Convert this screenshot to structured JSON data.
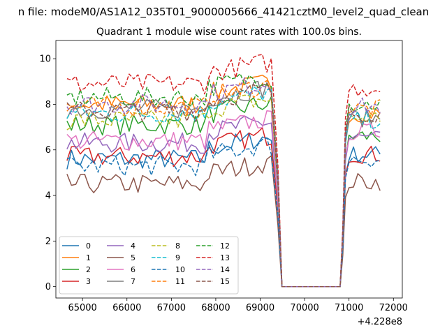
{
  "figure": {
    "suptitle": "n file: modeM0/AS1A12_035T01_9000005666_41421cztM0_level2_quad_clean"
  },
  "chart_data": {
    "type": "line",
    "title": "Quadrant 1 module wise count rates with 100.0s bins.",
    "xlabel": "",
    "ylabel": "",
    "x_offset_label": "+4.228e8",
    "x_offset": 422800000,
    "xlim": [
      64400,
      72200
    ],
    "ylim": [
      -0.5,
      10.8
    ],
    "xticks": [
      65000,
      66000,
      67000,
      68000,
      69000,
      70000,
      71000,
      72000
    ],
    "yticks": [
      0,
      2,
      4,
      6,
      8,
      10
    ],
    "grid": false,
    "legend": {
      "placement": "lower-left",
      "columns": 4
    },
    "segments": [
      {
        "start": 64650,
        "end": 69550
      },
      {
        "start": 70800,
        "end": 71750
      }
    ],
    "gap_value": 0,
    "series": [
      {
        "name": "0",
        "color": "#1f77b4",
        "dash": "solid",
        "seg1_level": 5.6,
        "seg2_level": 5.8
      },
      {
        "name": "1",
        "color": "#ff7f0e",
        "dash": "solid",
        "seg1_level": 8.0,
        "seg2_level": 7.6
      },
      {
        "name": "2",
        "color": "#2ca02c",
        "dash": "solid",
        "seg1_level": 7.1,
        "seg2_level": 6.6
      },
      {
        "name": "3",
        "color": "#d62728",
        "dash": "solid",
        "seg1_level": 5.7,
        "seg2_level": 5.8
      },
      {
        "name": "4",
        "color": "#9467bd",
        "dash": "solid",
        "seg1_level": 6.3,
        "seg2_level": 6.5
      },
      {
        "name": "5",
        "color": "#8c564b",
        "dash": "solid",
        "seg1_level": 4.5,
        "seg2_level": 4.6
      },
      {
        "name": "6",
        "color": "#e377c2",
        "dash": "solid",
        "seg1_level": 6.4,
        "seg2_level": 6.8
      },
      {
        "name": "7",
        "color": "#7f7f7f",
        "dash": "solid",
        "seg1_level": 7.8,
        "seg2_level": 7.4
      },
      {
        "name": "8",
        "color": "#bcbd22",
        "dash": "dashed",
        "seg1_level": 7.3,
        "seg2_level": 7.4
      },
      {
        "name": "9",
        "color": "#17becf",
        "dash": "dashed",
        "seg1_level": 7.6,
        "seg2_level": 7.3
      },
      {
        "name": "10",
        "color": "#1f77b4",
        "dash": "dashed",
        "seg1_level": 5.3,
        "seg2_level": 5.6
      },
      {
        "name": "11",
        "color": "#ff7f0e",
        "dash": "dashed",
        "seg1_level": 7.9,
        "seg2_level": 7.8
      },
      {
        "name": "12",
        "color": "#2ca02c",
        "dash": "dashed",
        "seg1_level": 8.3,
        "seg2_level": 8.0
      },
      {
        "name": "13",
        "color": "#d62728",
        "dash": "dashed",
        "seg1_level": 8.9,
        "seg2_level": 8.7
      },
      {
        "name": "14",
        "color": "#9467bd",
        "dash": "dashed",
        "seg1_level": 8.0,
        "seg2_level": 7.9
      },
      {
        "name": "15",
        "color": "#8c564b",
        "dash": "dashed",
        "seg1_level": 7.7,
        "seg2_level": 7.6
      }
    ]
  }
}
